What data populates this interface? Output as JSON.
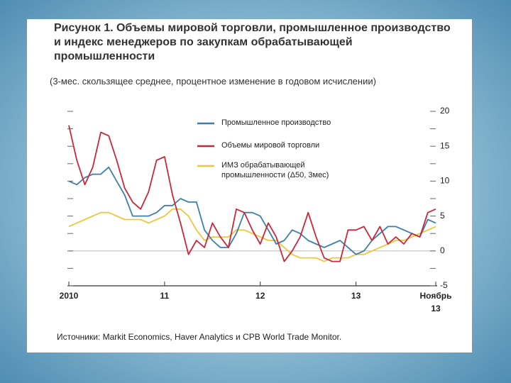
{
  "chart_data": {
    "type": "line",
    "title": "Рисунок 1. Объемы мировой торговли, промышленное производство и индекс менеджеров по закупкам обрабатывающей промышленности",
    "subtitle": "(3-мес. скользящее среднее, процентное изменение в годовом исчислении)",
    "source": "Источники: Markit Economics, Haver Analytics и CPB World Trade Monitor.",
    "categories": [
      "2010",
      null,
      null,
      null,
      null,
      null,
      null,
      null,
      null,
      null,
      null,
      null,
      "11",
      null,
      null,
      null,
      null,
      null,
      null,
      null,
      null,
      null,
      null,
      null,
      "12",
      null,
      null,
      null,
      null,
      null,
      null,
      null,
      null,
      null,
      null,
      null,
      "13",
      null,
      null,
      null,
      null,
      null,
      null,
      null,
      null,
      null,
      "Ноябрь 13"
    ],
    "series": [
      {
        "name": "Промышленное производство",
        "color": "#3d7fa8",
        "values": [
          10,
          9.5,
          10.5,
          11,
          11,
          12,
          10,
          8,
          5,
          5,
          5,
          5.5,
          6.5,
          6.5,
          7.5,
          7,
          7,
          3,
          1.5,
          0.5,
          0.5,
          2.5,
          5.5,
          5.5,
          5,
          3,
          1,
          1.5,
          3,
          2.5,
          1.5,
          1,
          0.5,
          1,
          1.5,
          0.5,
          -0.5,
          0,
          1.5,
          2.5,
          3.5,
          3.5,
          3,
          2.5,
          2,
          4.5,
          4
        ]
      },
      {
        "name": "Объемы мировой торговли",
        "color": "#c8283c",
        "values": [
          18,
          13,
          9.5,
          12,
          17,
          16.5,
          13,
          9,
          7,
          6,
          8.5,
          13,
          13.5,
          8,
          4,
          -0.5,
          1.5,
          0.5,
          4,
          2,
          0.5,
          6,
          5.5,
          3,
          1,
          4,
          2,
          -1.5,
          0,
          2,
          5.5,
          2,
          -1,
          -1.5,
          -1.5,
          3,
          3,
          3.5,
          1.5,
          3.5,
          1,
          2,
          1,
          2.5,
          2,
          5.5,
          6
        ]
      },
      {
        "name": "ИМЗ обрабатывающей промышленности (Δ50, 3мес)",
        "color": "#f0c63c",
        "values": [
          3.5,
          4,
          4.5,
          5,
          5.5,
          5.5,
          5,
          4.5,
          4.5,
          4.5,
          4,
          4.5,
          5,
          6,
          6,
          5,
          3,
          1.5,
          2,
          2,
          2,
          3,
          3,
          2.5,
          2,
          1.5,
          1.5,
          0.5,
          -0.5,
          -1,
          -1,
          -1,
          -1.5,
          -1,
          -1,
          -1,
          -0.5,
          -0.5,
          0,
          0.5,
          1,
          1.5,
          1.5,
          2,
          2.5,
          3,
          3.5
        ]
      }
    ],
    "ylim": [
      -5,
      20
    ],
    "yticks": [
      -5,
      0,
      5,
      10,
      15,
      20
    ],
    "yticks_minor": [
      -2.5,
      2.5,
      7.5,
      12.5,
      17.5
    ],
    "grid": false
  }
}
